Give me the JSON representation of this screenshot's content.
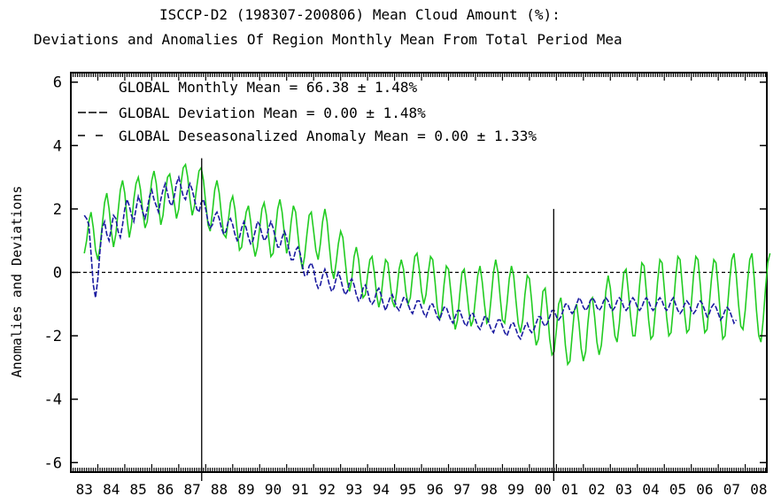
{
  "chart_data": {
    "type": "line",
    "title": "ISCCP-D2 (198307-200806) Mean Cloud Amount (%):",
    "subtitle": "Deviations and Anomalies Of Region Monthly Mean From Total Period Mea",
    "xlabel": "",
    "ylabel": "Anomalies and Deviations",
    "xlim": [
      1983.0,
      2008.8
    ],
    "ylim": [
      -6.3,
      6.3
    ],
    "yticks": [
      -6,
      -4,
      -2,
      0,
      2,
      4,
      6
    ],
    "ytick_labels": [
      "-6",
      "-4",
      "-2",
      "0",
      "2",
      "4",
      "6"
    ],
    "xtick_labels": [
      "83",
      "84",
      "85",
      "86",
      "87",
      "88",
      "89",
      "90",
      "91",
      "92",
      "93",
      "94",
      "95",
      "96",
      "97",
      "98",
      "99",
      "00",
      "01",
      "02",
      "03",
      "04",
      "05",
      "06",
      "07",
      "08"
    ],
    "grid": false,
    "legend_position": "top-left",
    "legend": [
      {
        "line_style": "none",
        "text": "GLOBAL Monthly Mean = 66.38 ± 1.48%"
      },
      {
        "line_style": "dashed",
        "text": "GLOBAL Deviation Mean = 0.00 ± 1.48%"
      },
      {
        "line_style": "long-dashed",
        "text": "GLOBAL Deseasonalized Anomaly Mean = 0.00 ± 1.33%"
      }
    ],
    "zero_line": 0,
    "vertical_markers": [
      {
        "x": 1987.85,
        "y_top": 3.6
      },
      {
        "x": 2000.9,
        "y_top": 2.0
      }
    ],
    "series": [
      {
        "color": "#22cc22",
        "x_start": 1983.5,
        "x_step": 0.0833333,
        "values": [
          0.6,
          1.0,
          1.6,
          1.9,
          1.4,
          0.7,
          0.4,
          0.8,
          1.5,
          2.2,
          2.5,
          2.0,
          1.3,
          0.8,
          1.2,
          1.9,
          2.6,
          2.9,
          2.5,
          1.7,
          1.1,
          1.5,
          2.3,
          2.8,
          3.0,
          2.6,
          1.9,
          1.4,
          1.6,
          2.3,
          2.9,
          3.2,
          2.8,
          2.1,
          1.5,
          1.8,
          2.5,
          3.0,
          3.1,
          2.7,
          2.2,
          1.7,
          2.0,
          2.8,
          3.3,
          3.4,
          3.0,
          2.3,
          1.8,
          2.1,
          2.7,
          3.2,
          3.3,
          2.9,
          2.2,
          1.5,
          1.3,
          1.9,
          2.6,
          2.9,
          2.5,
          1.8,
          1.2,
          1.1,
          1.6,
          2.2,
          2.4,
          2.0,
          1.3,
          0.7,
          0.8,
          1.4,
          1.9,
          2.1,
          1.6,
          0.9,
          0.5,
          0.8,
          1.4,
          2.0,
          2.2,
          1.8,
          1.1,
          0.5,
          0.6,
          1.3,
          2.0,
          2.3,
          1.9,
          1.2,
          0.6,
          0.9,
          1.6,
          2.1,
          1.9,
          1.2,
          0.5,
          0.1,
          0.5,
          1.2,
          1.8,
          1.9,
          1.3,
          0.7,
          0.4,
          0.9,
          1.6,
          2.0,
          1.6,
          0.8,
          0.1,
          -0.2,
          0.3,
          0.9,
          1.3,
          1.1,
          0.4,
          -0.3,
          -0.6,
          -0.2,
          0.5,
          0.8,
          0.4,
          -0.3,
          -0.8,
          -0.7,
          -0.1,
          0.4,
          0.5,
          0.0,
          -0.7,
          -1.1,
          -0.8,
          -0.1,
          0.4,
          0.3,
          -0.3,
          -0.9,
          -1.1,
          -0.6,
          0.1,
          0.4,
          0.1,
          -0.6,
          -1.0,
          -0.8,
          -0.1,
          0.5,
          0.6,
          0.1,
          -0.6,
          -1.0,
          -0.7,
          0.0,
          0.5,
          0.4,
          -0.3,
          -1.1,
          -1.5,
          -1.2,
          -0.4,
          0.2,
          0.1,
          -0.6,
          -1.3,
          -1.8,
          -1.5,
          -0.7,
          0.0,
          0.1,
          -0.5,
          -1.2,
          -1.7,
          -1.5,
          -0.8,
          -0.1,
          0.2,
          -0.3,
          -1.0,
          -1.6,
          -1.5,
          -0.8,
          0.0,
          0.4,
          0.0,
          -0.8,
          -1.5,
          -1.6,
          -1.0,
          -0.2,
          0.2,
          -0.1,
          -0.9,
          -1.6,
          -1.9,
          -1.5,
          -0.7,
          -0.1,
          -0.2,
          -0.9,
          -1.8,
          -2.3,
          -2.1,
          -1.4,
          -0.6,
          -0.5,
          -1.2,
          -2.1,
          -2.6,
          -2.5,
          -1.8,
          -1.0,
          -0.8,
          -1.4,
          -2.3,
          -2.9,
          -2.8,
          -2.0,
          -1.2,
          -1.0,
          -1.6,
          -2.4,
          -2.8,
          -2.5,
          -1.6,
          -0.9,
          -0.8,
          -1.4,
          -2.2,
          -2.6,
          -2.3,
          -1.5,
          -0.6,
          -0.1,
          -0.5,
          -1.3,
          -2.0,
          -2.2,
          -1.6,
          -0.7,
          0.0,
          0.1,
          -0.6,
          -1.4,
          -2.0,
          -2.0,
          -1.3,
          -0.4,
          0.3,
          0.2,
          -0.6,
          -1.5,
          -2.1,
          -2.0,
          -1.2,
          -0.3,
          0.4,
          0.3,
          -0.5,
          -1.4,
          -2.0,
          -1.9,
          -1.1,
          -0.2,
          0.5,
          0.4,
          -0.4,
          -1.3,
          -1.9,
          -1.8,
          -1.0,
          -0.1,
          0.5,
          0.4,
          -0.4,
          -1.3,
          -1.9,
          -1.8,
          -1.0,
          -0.2,
          0.4,
          0.3,
          -0.5,
          -1.4,
          -2.1,
          -2.0,
          -1.2,
          -0.3,
          0.4,
          0.6,
          -0.1,
          -1.0,
          -1.7,
          -1.8,
          -1.2,
          -0.3,
          0.4,
          0.6,
          -0.2,
          -1.2,
          -2.0,
          -2.2,
          -1.5,
          -0.5,
          0.3,
          0.6
        ]
      },
      {
        "color": "#1a1aa0",
        "x_start": 1983.5,
        "x_step": 0.0833333,
        "values": [
          1.8,
          1.7,
          1.5,
          0.6,
          -0.4,
          -0.8,
          -0.2,
          0.7,
          1.4,
          1.6,
          1.2,
          1.0,
          1.4,
          1.8,
          1.7,
          1.3,
          1.1,
          1.5,
          2.0,
          2.3,
          2.1,
          1.8,
          1.6,
          2.0,
          2.4,
          2.2,
          1.9,
          1.7,
          2.0,
          2.4,
          2.6,
          2.3,
          2.1,
          1.9,
          2.3,
          2.6,
          2.8,
          2.5,
          2.2,
          2.1,
          2.4,
          2.8,
          3.0,
          2.7,
          2.4,
          2.3,
          2.6,
          2.8,
          2.6,
          2.3,
          2.0,
          1.9,
          2.2,
          2.3,
          2.0,
          1.6,
          1.4,
          1.5,
          1.8,
          1.9,
          1.7,
          1.4,
          1.2,
          1.3,
          1.6,
          1.7,
          1.5,
          1.2,
          1.0,
          1.1,
          1.4,
          1.6,
          1.4,
          1.1,
          0.9,
          1.0,
          1.3,
          1.6,
          1.5,
          1.2,
          1.0,
          1.1,
          1.4,
          1.6,
          1.4,
          1.1,
          0.8,
          0.8,
          1.1,
          1.3,
          1.1,
          0.7,
          0.4,
          0.4,
          0.7,
          0.8,
          0.6,
          0.2,
          -0.1,
          -0.1,
          0.2,
          0.3,
          0.1,
          -0.3,
          -0.5,
          -0.4,
          -0.1,
          0.1,
          -0.1,
          -0.4,
          -0.6,
          -0.5,
          -0.2,
          0.0,
          -0.2,
          -0.5,
          -0.7,
          -0.6,
          -0.3,
          -0.2,
          -0.4,
          -0.7,
          -0.9,
          -0.8,
          -0.5,
          -0.4,
          -0.6,
          -0.9,
          -1.0,
          -0.9,
          -0.6,
          -0.5,
          -0.7,
          -1.0,
          -1.2,
          -1.0,
          -0.8,
          -0.7,
          -0.9,
          -1.1,
          -1.2,
          -1.0,
          -0.8,
          -0.8,
          -1.0,
          -1.2,
          -1.3,
          -1.1,
          -0.9,
          -0.9,
          -1.1,
          -1.3,
          -1.4,
          -1.2,
          -1.0,
          -1.0,
          -1.2,
          -1.4,
          -1.5,
          -1.3,
          -1.1,
          -1.1,
          -1.3,
          -1.5,
          -1.6,
          -1.4,
          -1.2,
          -1.2,
          -1.4,
          -1.6,
          -1.7,
          -1.5,
          -1.3,
          -1.3,
          -1.5,
          -1.7,
          -1.8,
          -1.6,
          -1.4,
          -1.4,
          -1.6,
          -1.8,
          -1.9,
          -1.7,
          -1.5,
          -1.5,
          -1.7,
          -1.9,
          -2.0,
          -1.8,
          -1.6,
          -1.6,
          -1.8,
          -2.0,
          -2.1,
          -1.9,
          -1.7,
          -1.6,
          -1.8,
          -1.9,
          -1.8,
          -1.6,
          -1.4,
          -1.4,
          -1.6,
          -1.7,
          -1.6,
          -1.4,
          -1.2,
          -1.2,
          -1.4,
          -1.5,
          -1.4,
          -1.2,
          -1.0,
          -1.0,
          -1.2,
          -1.3,
          -1.2,
          -1.0,
          -0.8,
          -0.9,
          -1.1,
          -1.2,
          -1.1,
          -0.9,
          -0.8,
          -0.9,
          -1.1,
          -1.2,
          -1.1,
          -0.9,
          -0.8,
          -0.9,
          -1.1,
          -1.2,
          -1.1,
          -0.9,
          -0.8,
          -0.9,
          -1.1,
          -1.2,
          -1.1,
          -0.9,
          -0.8,
          -0.9,
          -1.1,
          -1.2,
          -1.1,
          -0.9,
          -0.8,
          -0.9,
          -1.1,
          -1.2,
          -1.1,
          -0.9,
          -0.8,
          -0.9,
          -1.1,
          -1.2,
          -1.1,
          -0.9,
          -0.8,
          -1.0,
          -1.2,
          -1.3,
          -1.2,
          -1.0,
          -0.9,
          -1.0,
          -1.2,
          -1.3,
          -1.2,
          -1.0,
          -0.9,
          -1.0,
          -1.2,
          -1.4,
          -1.3,
          -1.1,
          -1.0,
          -1.1,
          -1.3,
          -1.5,
          -1.4,
          -1.2,
          -1.1,
          -1.2,
          -1.4,
          -1.6,
          -1.5
        ]
      }
    ]
  }
}
